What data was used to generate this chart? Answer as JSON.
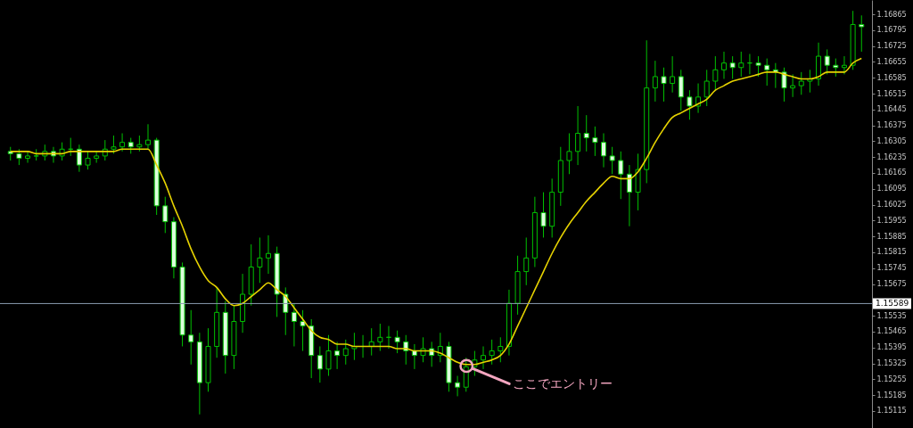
{
  "chart_data": {
    "type": "candlestick",
    "categories": [
      null,
      null,
      null,
      null,
      null,
      null,
      null,
      null,
      null,
      null,
      null,
      null,
      null,
      null,
      null,
      null,
      null,
      null,
      null,
      null,
      null,
      null,
      null,
      null,
      null,
      null,
      null,
      null,
      null,
      null,
      null,
      null,
      null,
      null,
      null,
      null,
      null,
      null,
      null,
      null,
      null,
      null,
      null,
      null,
      null,
      null,
      null,
      null,
      null,
      null,
      null,
      null,
      null,
      null,
      null,
      null,
      null,
      null,
      null,
      null,
      null,
      null,
      null,
      null,
      null,
      null,
      null,
      null,
      null,
      null,
      null,
      null,
      null,
      null,
      null,
      null,
      null,
      null,
      null,
      null,
      null,
      null,
      null,
      null,
      null,
      null,
      null,
      null,
      null,
      null,
      null,
      null,
      null,
      null,
      null,
      null,
      null,
      null,
      null,
      null
    ],
    "ohlc": [
      [
        1.1626,
        1.1628,
        1.1622,
        1.1625
      ],
      [
        1.1625,
        1.1627,
        1.162,
        1.1623
      ],
      [
        1.1623,
        1.1626,
        1.1621,
        1.1624
      ],
      [
        1.1624,
        1.1627,
        1.1622,
        1.1624
      ],
      [
        1.1624,
        1.1629,
        1.1622,
        1.1626
      ],
      [
        1.1626,
        1.1628,
        1.1621,
        1.1624
      ],
      [
        1.1624,
        1.163,
        1.1622,
        1.1627
      ],
      [
        1.1627,
        1.1632,
        1.1624,
        1.1627
      ],
      [
        1.1627,
        1.1629,
        1.1617,
        1.162
      ],
      [
        1.162,
        1.1626,
        1.1618,
        1.1623
      ],
      [
        1.1623,
        1.1626,
        1.1621,
        1.1624
      ],
      [
        1.1624,
        1.1631,
        1.1622,
        1.1627
      ],
      [
        1.1627,
        1.1633,
        1.1625,
        1.1628
      ],
      [
        1.1628,
        1.1634,
        1.1626,
        1.163
      ],
      [
        1.163,
        1.1632,
        1.1625,
        1.1628
      ],
      [
        1.1628,
        1.1633,
        1.1626,
        1.1629
      ],
      [
        1.1629,
        1.1638,
        1.1627,
        1.1631
      ],
      [
        1.1631,
        1.1632,
        1.1598,
        1.1602
      ],
      [
        1.1602,
        1.1606,
        1.159,
        1.1595
      ],
      [
        1.1595,
        1.1597,
        1.157,
        1.1575
      ],
      [
        1.1575,
        1.1577,
        1.154,
        1.1545
      ],
      [
        1.1545,
        1.1556,
        1.1532,
        1.1542
      ],
      [
        1.1542,
        1.1546,
        1.151,
        1.1524
      ],
      [
        1.1524,
        1.1548,
        1.152,
        1.154
      ],
      [
        1.154,
        1.1566,
        1.1535,
        1.1555
      ],
      [
        1.1555,
        1.156,
        1.1528,
        1.1536
      ],
      [
        1.1536,
        1.1558,
        1.153,
        1.1551
      ],
      [
        1.1551,
        1.1572,
        1.1546,
        1.1563
      ],
      [
        1.1563,
        1.1585,
        1.1558,
        1.1575
      ],
      [
        1.1575,
        1.1588,
        1.1568,
        1.1579
      ],
      [
        1.1579,
        1.1589,
        1.1572,
        1.1581
      ],
      [
        1.1581,
        1.1584,
        1.1553,
        1.1563
      ],
      [
        1.1563,
        1.1566,
        1.1545,
        1.1555
      ],
      [
        1.1555,
        1.1559,
        1.154,
        1.1551
      ],
      [
        1.1551,
        1.1556,
        1.1538,
        1.1549
      ],
      [
        1.1549,
        1.1552,
        1.1526,
        1.1536
      ],
      [
        1.1536,
        1.154,
        1.1524,
        1.153
      ],
      [
        1.153,
        1.1545,
        1.1527,
        1.1538
      ],
      [
        1.1538,
        1.1542,
        1.153,
        1.1536
      ],
      [
        1.1536,
        1.1543,
        1.1532,
        1.1539
      ],
      [
        1.1539,
        1.1546,
        1.1534,
        1.154
      ],
      [
        1.154,
        1.1545,
        1.1535,
        1.154
      ],
      [
        1.154,
        1.1548,
        1.1536,
        1.1542
      ],
      [
        1.1542,
        1.155,
        1.1538,
        1.1544
      ],
      [
        1.1544,
        1.1549,
        1.1539,
        1.1544
      ],
      [
        1.1544,
        1.1547,
        1.1537,
        1.1542
      ],
      [
        1.1542,
        1.1545,
        1.1532,
        1.1538
      ],
      [
        1.1538,
        1.1541,
        1.153,
        1.1536
      ],
      [
        1.1536,
        1.1544,
        1.1533,
        1.1539
      ],
      [
        1.1539,
        1.1542,
        1.1531,
        1.1536
      ],
      [
        1.1536,
        1.1546,
        1.1533,
        1.154
      ],
      [
        1.154,
        1.1542,
        1.152,
        1.1524
      ],
      [
        1.1524,
        1.1527,
        1.1518,
        1.1522
      ],
      [
        1.1522,
        1.1535,
        1.152,
        1.1531
      ],
      [
        1.1531,
        1.1538,
        1.1527,
        1.1534
      ],
      [
        1.1534,
        1.154,
        1.153,
        1.1536
      ],
      [
        1.1536,
        1.1543,
        1.1532,
        1.1538
      ],
      [
        1.1538,
        1.1544,
        1.1533,
        1.154
      ],
      [
        1.154,
        1.1565,
        1.1536,
        1.1559
      ],
      [
        1.1559,
        1.158,
        1.1554,
        1.1573
      ],
      [
        1.1573,
        1.1588,
        1.1567,
        1.1579
      ],
      [
        1.1579,
        1.1606,
        1.1575,
        1.1599
      ],
      [
        1.1599,
        1.1608,
        1.1588,
        1.1593
      ],
      [
        1.1593,
        1.1614,
        1.1588,
        1.1608
      ],
      [
        1.1608,
        1.1628,
        1.1602,
        1.1622
      ],
      [
        1.1622,
        1.1634,
        1.1616,
        1.1626
      ],
      [
        1.1626,
        1.1646,
        1.162,
        1.1634
      ],
      [
        1.1634,
        1.1642,
        1.1626,
        1.1632
      ],
      [
        1.1632,
        1.1637,
        1.1624,
        1.163
      ],
      [
        1.163,
        1.1634,
        1.1619,
        1.1624
      ],
      [
        1.1624,
        1.1628,
        1.1616,
        1.1622
      ],
      [
        1.1622,
        1.1626,
        1.1605,
        1.1616
      ],
      [
        1.1616,
        1.162,
        1.1593,
        1.1608
      ],
      [
        1.1608,
        1.1625,
        1.16,
        1.1618
      ],
      [
        1.1618,
        1.1675,
        1.1612,
        1.1654
      ],
      [
        1.1654,
        1.1666,
        1.1648,
        1.1659
      ],
      [
        1.1659,
        1.1663,
        1.1648,
        1.1656
      ],
      [
        1.1656,
        1.1668,
        1.1652,
        1.1659
      ],
      [
        1.1659,
        1.1662,
        1.1644,
        1.165
      ],
      [
        1.165,
        1.1653,
        1.164,
        1.1646
      ],
      [
        1.1646,
        1.1656,
        1.1643,
        1.165
      ],
      [
        1.165,
        1.1662,
        1.1646,
        1.1657
      ],
      [
        1.1657,
        1.1668,
        1.1653,
        1.1662
      ],
      [
        1.1662,
        1.167,
        1.1658,
        1.1665
      ],
      [
        1.1665,
        1.1668,
        1.1658,
        1.1663
      ],
      [
        1.1663,
        1.167,
        1.1659,
        1.1665
      ],
      [
        1.1665,
        1.1669,
        1.166,
        1.1665
      ],
      [
        1.1665,
        1.1668,
        1.1659,
        1.1664
      ],
      [
        1.1664,
        1.1667,
        1.1655,
        1.1662
      ],
      [
        1.1662,
        1.1665,
        1.1654,
        1.1661
      ],
      [
        1.1661,
        1.1663,
        1.1648,
        1.1654
      ],
      [
        1.1654,
        1.166,
        1.165,
        1.1655
      ],
      [
        1.1655,
        1.1661,
        1.1651,
        1.1657
      ],
      [
        1.1657,
        1.1662,
        1.1652,
        1.1658
      ],
      [
        1.1658,
        1.1674,
        1.1655,
        1.1668
      ],
      [
        1.1668,
        1.1671,
        1.166,
        1.1664
      ],
      [
        1.1664,
        1.1667,
        1.1659,
        1.1663
      ],
      [
        1.1663,
        1.1668,
        1.166,
        1.1664
      ],
      [
        1.1664,
        1.1688,
        1.1662,
        1.1682
      ],
      [
        1.1682,
        1.1686,
        1.167,
        1.1681
      ]
    ],
    "series": [
      {
        "type": "line",
        "color": "#e6d200",
        "values": [
          1.1626,
          1.1626,
          1.1626,
          1.1625,
          1.1625,
          1.1625,
          1.1625,
          1.1626,
          1.1626,
          1.1626,
          1.1626,
          1.1626,
          1.1626,
          1.1627,
          1.1627,
          1.1627,
          1.1627,
          1.162,
          1.1612,
          1.1602,
          1.1593,
          1.1583,
          1.1575,
          1.1569,
          1.1566,
          1.1561,
          1.1558,
          1.1559,
          1.1562,
          1.1565,
          1.1568,
          1.1565,
          1.1562,
          1.1557,
          1.1552,
          1.1547,
          1.1544,
          1.1543,
          1.1541,
          1.1541,
          1.154,
          1.154,
          1.154,
          1.154,
          1.154,
          1.1539,
          1.1539,
          1.1538,
          1.1538,
          1.1538,
          1.1537,
          1.1535,
          1.1533,
          1.1532,
          1.1532,
          1.1533,
          1.1534,
          1.1536,
          1.1541,
          1.1549,
          1.1557,
          1.1565,
          1.1573,
          1.1581,
          1.1588,
          1.1594,
          1.1599,
          1.1604,
          1.1608,
          1.1612,
          1.1615,
          1.1614,
          1.1614,
          1.1617,
          1.1623,
          1.163,
          1.1636,
          1.1641,
          1.1643,
          1.1645,
          1.1647,
          1.1649,
          1.1653,
          1.1655,
          1.1657,
          1.1658,
          1.1659,
          1.166,
          1.1661,
          1.1661,
          1.166,
          1.1659,
          1.1658,
          1.1658,
          1.1659,
          1.1661,
          1.1661,
          1.1661,
          1.1665,
          1.1667
        ]
      }
    ],
    "ylim": [
      1.1504,
      1.16928
    ],
    "yticks": [
      1.15115,
      1.15185,
      1.15255,
      1.15325,
      1.15395,
      1.15465,
      1.15535,
      1.15675,
      1.15745,
      1.15815,
      1.15885,
      1.15955,
      1.16025,
      1.16095,
      1.16165,
      1.16235,
      1.16305,
      1.16375,
      1.16445,
      1.16515,
      1.16585,
      1.16655,
      1.16725,
      1.16795,
      1.16865
    ],
    "ref_lines": [
      {
        "axis": "y",
        "value": 1.15589,
        "label": "1.15589",
        "color": "#8a9bb0"
      }
    ],
    "annotations": [
      "ここでエントリー"
    ],
    "tick_labels": "y",
    "grid": false
  }
}
